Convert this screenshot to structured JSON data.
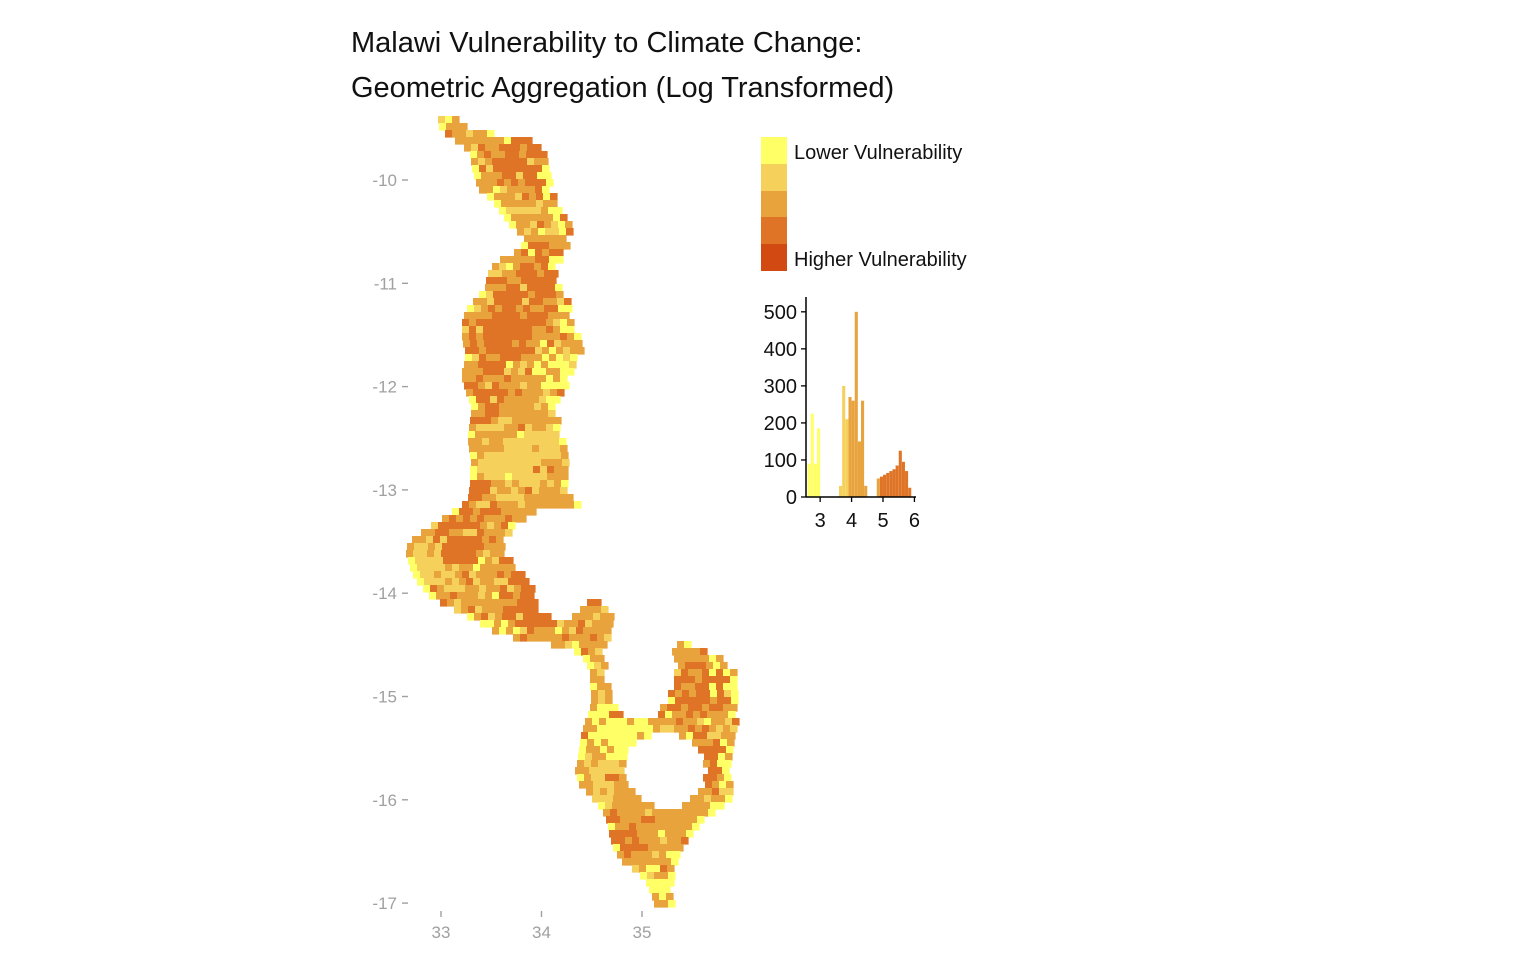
{
  "title": {
    "line1": "Malawi Vulnerability to Climate Change:",
    "line2": "Geometric Aggregation (Log Transformed)"
  },
  "map": {
    "y_ticks": [
      "-10",
      "-11",
      "-12",
      "-13",
      "-14",
      "-15",
      "-16",
      "-17"
    ],
    "x_ticks": [
      "33",
      "34",
      "35"
    ],
    "lat_range": [
      -17.1,
      -9.4
    ],
    "lon_range": [
      32.7,
      35.9
    ]
  },
  "legend": {
    "low_label": "Lower Vulnerability",
    "high_label": "Higher Vulnerability",
    "colors": [
      "#ffff66",
      "#f5d05a",
      "#e8a33c",
      "#df7427",
      "#d24a11"
    ]
  },
  "chart_data": {
    "type": "bar",
    "x_ticks": [
      "3",
      "4",
      "5",
      "6"
    ],
    "y_ticks": [
      "0",
      "100",
      "200",
      "300",
      "400",
      "500"
    ],
    "xlim": [
      2.55,
      6.05
    ],
    "ylim": [
      0,
      540
    ],
    "bins": [
      {
        "x": 2.65,
        "count": 90,
        "class": 0
      },
      {
        "x": 2.75,
        "count": 225,
        "class": 0
      },
      {
        "x": 2.85,
        "count": 90,
        "class": 0
      },
      {
        "x": 2.95,
        "count": 185,
        "class": 0
      },
      {
        "x": 3.65,
        "count": 30,
        "class": 1
      },
      {
        "x": 3.75,
        "count": 300,
        "class": 1
      },
      {
        "x": 3.85,
        "count": 210,
        "class": 1
      },
      {
        "x": 3.95,
        "count": 270,
        "class": 2
      },
      {
        "x": 4.05,
        "count": 260,
        "class": 2
      },
      {
        "x": 4.15,
        "count": 500,
        "class": 2
      },
      {
        "x": 4.25,
        "count": 150,
        "class": 2
      },
      {
        "x": 4.35,
        "count": 260,
        "class": 2
      },
      {
        "x": 4.45,
        "count": 30,
        "class": 2
      },
      {
        "x": 4.85,
        "count": 50,
        "class": 2
      },
      {
        "x": 4.95,
        "count": 55,
        "class": 3
      },
      {
        "x": 5.05,
        "count": 60,
        "class": 3
      },
      {
        "x": 5.15,
        "count": 65,
        "class": 3
      },
      {
        "x": 5.25,
        "count": 70,
        "class": 3
      },
      {
        "x": 5.35,
        "count": 75,
        "class": 3
      },
      {
        "x": 5.45,
        "count": 85,
        "class": 3
      },
      {
        "x": 5.55,
        "count": 125,
        "class": 3
      },
      {
        "x": 5.65,
        "count": 95,
        "class": 3
      },
      {
        "x": 5.75,
        "count": 70,
        "class": 3
      },
      {
        "x": 5.85,
        "count": 25,
        "class": 3
      }
    ]
  }
}
